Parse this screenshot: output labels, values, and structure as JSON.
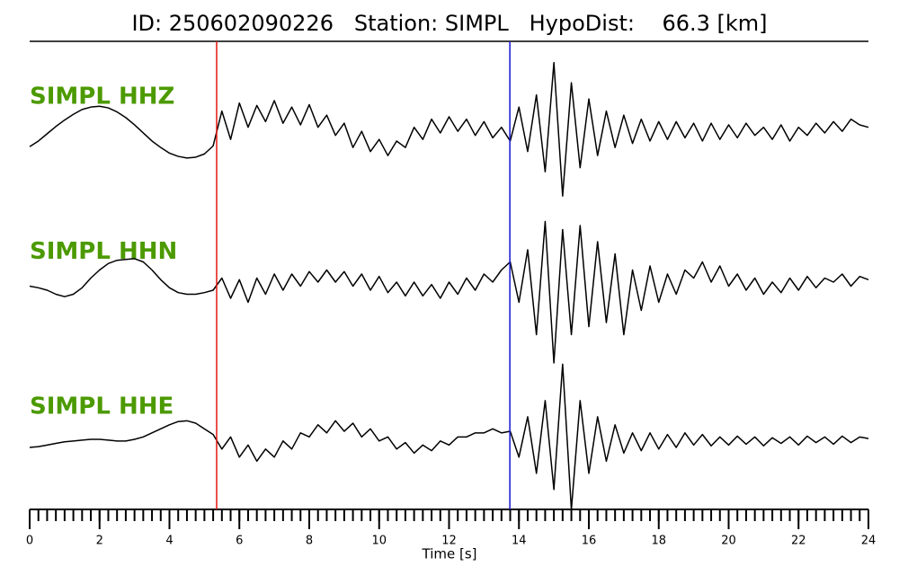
{
  "chart_data": {
    "type": "line",
    "title": "ID: 250602090226   Station: SIMPL   HypoDist:    66.3 [km]",
    "xlabel": "Time [s]",
    "xlim": [
      0,
      24
    ],
    "xticks": [
      0,
      2,
      4,
      6,
      8,
      10,
      12,
      14,
      16,
      18,
      20,
      22,
      24
    ],
    "label_color": "#4c9a00",
    "picks": [
      {
        "color": "#e8140e",
        "x": 5.35
      },
      {
        "color": "#1414d2",
        "x": 13.74
      }
    ],
    "x": [
      0,
      0.25,
      0.5,
      0.75,
      1,
      1.25,
      1.5,
      1.75,
      2,
      2.25,
      2.5,
      2.75,
      3,
      3.25,
      3.5,
      3.75,
      4,
      4.25,
      4.5,
      4.75,
      5,
      5.25,
      5.5,
      5.75,
      6,
      6.25,
      6.5,
      6.75,
      7,
      7.25,
      7.5,
      7.75,
      8,
      8.25,
      8.5,
      8.75,
      9,
      9.25,
      9.5,
      9.75,
      10,
      10.25,
      10.5,
      10.75,
      11,
      11.25,
      11.5,
      11.75,
      12,
      12.25,
      12.5,
      12.75,
      13,
      13.25,
      13.5,
      13.75,
      14,
      14.25,
      14.5,
      14.75,
      15,
      15.25,
      15.5,
      15.75,
      16,
      16.25,
      16.5,
      16.75,
      17,
      17.25,
      17.5,
      17.75,
      18,
      18.25,
      18.5,
      18.75,
      19,
      19.25,
      19.5,
      19.75,
      20,
      20.25,
      20.5,
      20.75,
      21,
      21.25,
      21.5,
      21.75,
      22,
      22.25,
      22.5,
      22.75,
      23,
      23.25,
      23.5,
      23.75,
      24
    ],
    "series": [
      {
        "name": "SIMPL HHZ",
        "color": "#000000",
        "values": [
          -0.19,
          -0.12,
          -0.03,
          0.06,
          0.14,
          0.21,
          0.27,
          0.3,
          0.31,
          0.29,
          0.24,
          0.17,
          0.08,
          -0.02,
          -0.12,
          -0.2,
          -0.27,
          -0.31,
          -0.33,
          -0.32,
          -0.28,
          -0.18,
          0.25,
          -0.1,
          0.35,
          0.05,
          0.32,
          0.12,
          0.38,
          0.1,
          0.3,
          0.08,
          0.33,
          0.05,
          0.2,
          -0.05,
          0.1,
          -0.2,
          0,
          -0.25,
          -0.1,
          -0.3,
          -0.12,
          -0.2,
          0.05,
          -0.1,
          0.15,
          -0.02,
          0.18,
          0,
          0.15,
          -0.05,
          0.12,
          -0.08,
          0.05,
          -0.12,
          0.3,
          -0.25,
          0.45,
          -0.5,
          0.85,
          -0.8,
          0.6,
          -0.45,
          0.4,
          -0.3,
          0.25,
          -0.2,
          0.2,
          -0.15,
          0.15,
          -0.12,
          0.12,
          -0.1,
          0.12,
          -0.08,
          0.1,
          -0.12,
          0.1,
          -0.1,
          0.08,
          -0.08,
          0.1,
          -0.05,
          0.05,
          -0.1,
          0.08,
          -0.12,
          0.05,
          -0.05,
          0.1,
          -0.02,
          0.12,
          0,
          0.15,
          0.08,
          0.05
        ]
      },
      {
        "name": "SIMPL HHN",
        "color": "#000000",
        "values": [
          0,
          -0.02,
          -0.05,
          -0.1,
          -0.13,
          -0.1,
          -0.02,
          0.1,
          0.2,
          0.28,
          0.32,
          0.33,
          0.34,
          0.3,
          0.2,
          0.08,
          -0.02,
          -0.08,
          -0.1,
          -0.1,
          -0.08,
          -0.05,
          0.1,
          -0.15,
          0.08,
          -0.2,
          0.1,
          -0.1,
          0.15,
          -0.05,
          0.15,
          0,
          0.18,
          0.05,
          0.2,
          0.05,
          0.18,
          0,
          0.15,
          -0.05,
          0.12,
          -0.08,
          0.05,
          -0.12,
          0.05,
          -0.12,
          0.02,
          -0.15,
          0.05,
          -0.1,
          0.1,
          -0.05,
          0.15,
          0.05,
          0.2,
          0.3,
          -0.2,
          0.45,
          -0.6,
          0.8,
          -0.95,
          0.7,
          -0.6,
          0.75,
          -0.5,
          0.55,
          -0.45,
          0.4,
          -0.6,
          0.2,
          -0.3,
          0.25,
          -0.2,
          0.15,
          -0.1,
          0.2,
          0.1,
          0.3,
          0.05,
          0.25,
          0,
          0.15,
          -0.05,
          0.1,
          -0.1,
          0.05,
          -0.08,
          0.1,
          -0.05,
          0.12,
          -0.02,
          0.1,
          0.05,
          0.15,
          0,
          0.12,
          0.08
        ]
      },
      {
        "name": "SIMPL HHE",
        "color": "#000000",
        "values": [
          -0.08,
          -0.07,
          -0.05,
          -0.03,
          -0.01,
          0,
          0.01,
          0.02,
          0.02,
          0.01,
          0,
          0,
          0.02,
          0.05,
          0.1,
          0.15,
          0.2,
          0.24,
          0.25,
          0.22,
          0.15,
          0.08,
          -0.1,
          0.05,
          -0.2,
          -0.05,
          -0.25,
          -0.1,
          -0.2,
          0,
          -0.1,
          0.1,
          0.05,
          0.2,
          0.1,
          0.25,
          0.12,
          0.22,
          0.05,
          0.15,
          0,
          0.05,
          -0.1,
          -0.02,
          -0.15,
          -0.05,
          -0.12,
          0,
          -0.05,
          0.05,
          0.05,
          0.1,
          0.1,
          0.15,
          0.1,
          0.12,
          -0.2,
          0.3,
          -0.4,
          0.5,
          -0.6,
          0.95,
          -0.85,
          0.5,
          -0.4,
          0.3,
          -0.25,
          0.2,
          -0.15,
          0.1,
          -0.12,
          0.1,
          -0.1,
          0.08,
          -0.08,
          0.1,
          -0.05,
          0.08,
          -0.06,
          0.05,
          -0.05,
          0.06,
          -0.04,
          0.05,
          -0.06,
          0.04,
          -0.03,
          0.05,
          -0.05,
          0.06,
          -0.02,
          0.05,
          -0.04,
          0.06,
          -0.02,
          0.05,
          0.03
        ]
      }
    ]
  }
}
